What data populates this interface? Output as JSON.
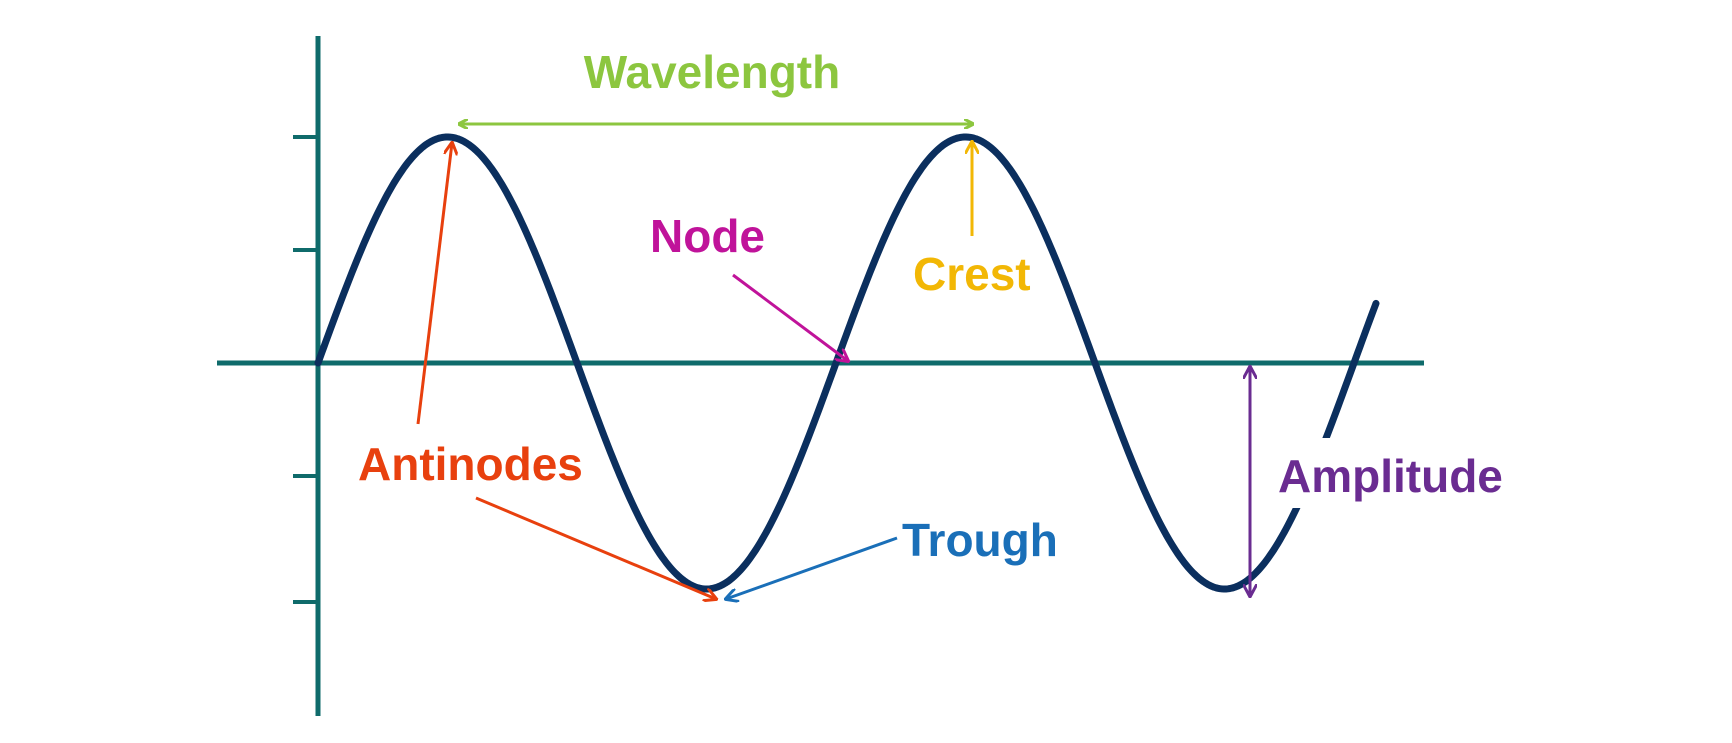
{
  "labels": {
    "wavelength": "Wavelength",
    "node": "Node",
    "crest": "Crest",
    "antinodes": "Antinodes",
    "trough": "Trough",
    "amplitude": "Amplitude"
  },
  "colors": {
    "background": "#ffffff",
    "axis": "#0f6b6b",
    "wave": "#0b2f5e",
    "wavelength": "#8cc63f",
    "node": "#c0139a",
    "crest": "#f2b705",
    "antinodes": "#e8400e",
    "trough": "#1a6fb8",
    "amplitude": "#6a2c91"
  },
  "icons": {
    "arrowheads": "arrow-head-icon"
  }
}
